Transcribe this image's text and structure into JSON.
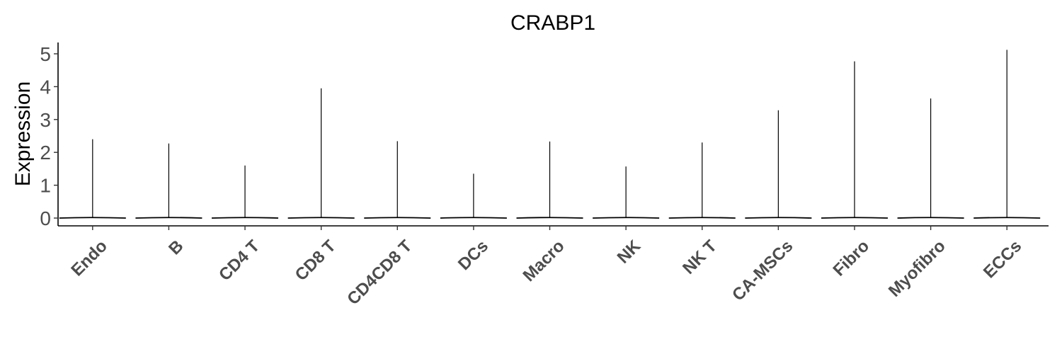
{
  "chart_data": {
    "type": "violin",
    "title": "CRABP1",
    "ylabel": "Expression",
    "xlabel": "",
    "ylim": [
      -0.25,
      5.3
    ],
    "yticks": [
      0,
      1,
      2,
      3,
      4,
      5
    ],
    "grid": false,
    "legend": "none",
    "categories": [
      "Endo",
      "B",
      "CD4 T",
      "CD8 T",
      "CD4CD8 T",
      "DCs",
      "Macro",
      "NK",
      "NK T",
      "CA-MSCs",
      "Fibro",
      "Myofibro",
      "ECCs"
    ],
    "max_values": [
      2.4,
      2.27,
      1.6,
      3.95,
      2.34,
      1.35,
      2.33,
      1.57,
      2.3,
      3.28,
      4.77,
      3.64,
      5.12
    ],
    "min_values": [
      0,
      0,
      0,
      0,
      0,
      0,
      0,
      0,
      0,
      0,
      0,
      0,
      0
    ],
    "colors": {
      "line": "#000000",
      "tick_label": "#4d4d4d",
      "background": "#ffffff"
    }
  }
}
